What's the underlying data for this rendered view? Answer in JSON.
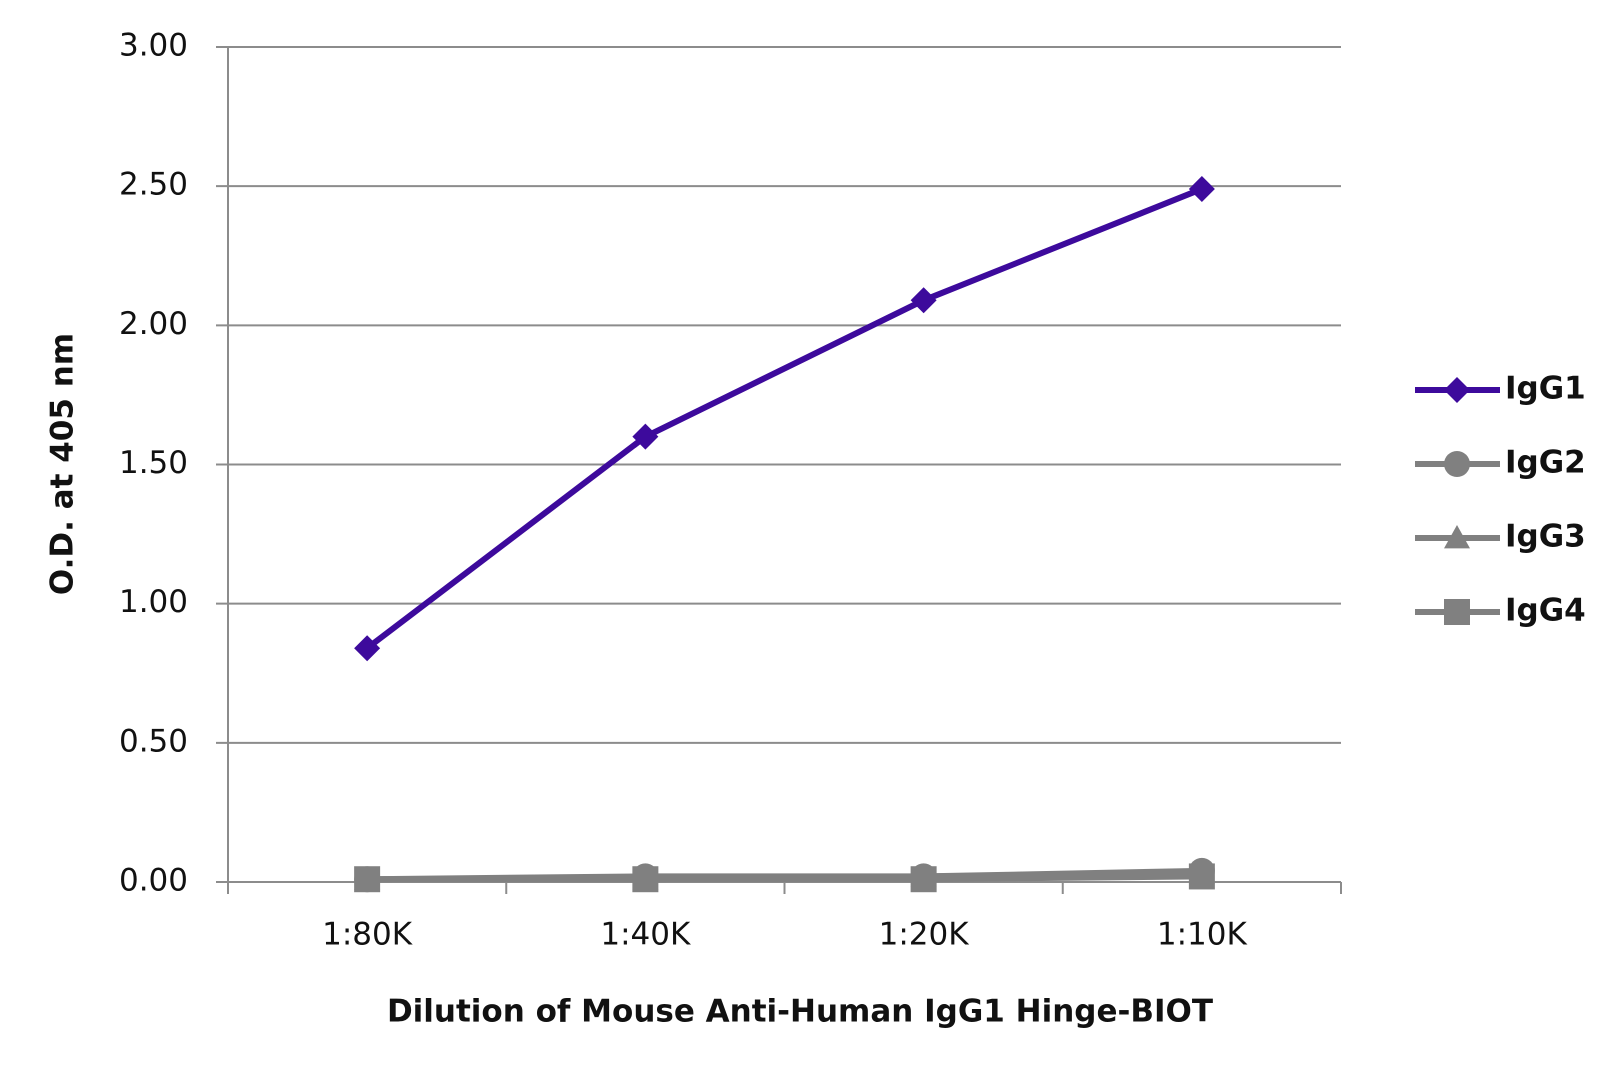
{
  "chart_data": {
    "type": "line",
    "x_label": "Dilution of Mouse Anti-Human IgG1 Hinge-BIOT",
    "y_label": "O.D. at 405 nm",
    "categories": [
      "1:80K",
      "1:40K",
      "1:20K",
      "1:10K"
    ],
    "series": [
      {
        "name": "IgG1",
        "color": "#3d0a9c",
        "marker": "diamond",
        "values": [
          0.84,
          1.6,
          2.09,
          2.49
        ]
      },
      {
        "name": "IgG2",
        "color": "#808080",
        "marker": "circle",
        "values": [
          0.01,
          0.02,
          0.02,
          0.04
        ]
      },
      {
        "name": "IgG3",
        "color": "#808080",
        "marker": "triangle",
        "values": [
          0.01,
          0.01,
          0.02,
          0.03
        ]
      },
      {
        "name": "IgG4",
        "color": "#808080",
        "marker": "square",
        "values": [
          0.01,
          0.01,
          0.01,
          0.02
        ]
      }
    ],
    "ylim": [
      0,
      3
    ],
    "yticks": [
      {
        "value": 0,
        "label": "0.00"
      },
      {
        "value": 0.5,
        "label": "0.50"
      },
      {
        "value": 1,
        "label": "1.00"
      },
      {
        "value": 1.5,
        "label": "1.50"
      },
      {
        "value": 2,
        "label": "2.00"
      },
      {
        "value": 2.5,
        "label": "2.50"
      },
      {
        "value": 3,
        "label": "3.00"
      }
    ],
    "grid": true,
    "legend": "right"
  }
}
